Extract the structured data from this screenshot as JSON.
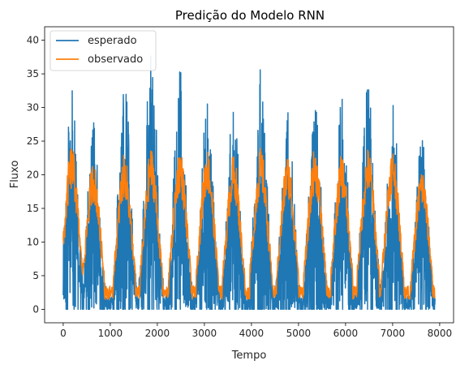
{
  "chart_data": {
    "type": "line",
    "title": "Predição do Modelo RNN",
    "xlabel": "Tempo",
    "ylabel": "Fluxo",
    "xlim": [
      -395,
      8295
    ],
    "ylim": [
      -2,
      42
    ],
    "xticks": [
      0,
      1000,
      2000,
      3000,
      4000,
      5000,
      6000,
      7000,
      8000
    ],
    "yticks": [
      0,
      5,
      10,
      15,
      20,
      25,
      30,
      35,
      40
    ],
    "grid": false,
    "legend_position": "top-left",
    "cycle_peaks_x": [
      180,
      640,
      1300,
      1870,
      2480,
      3060,
      3620,
      4200,
      4770,
      5350,
      5920,
      6480,
      7000,
      7620
    ],
    "series": [
      {
        "name": "esperado",
        "color": "#1f77b4",
        "x_range": [
          0,
          7900
        ],
        "y_min": 0,
        "y_max": 40,
        "cycle_peaks_y": [
          33,
          28,
          35,
          40,
          36,
          31,
          31,
          36,
          31,
          32,
          32,
          34,
          31,
          26
        ]
      },
      {
        "name": "observado",
        "color": "#ff7f0e",
        "x_range": [
          0,
          7900
        ],
        "y_min": 1.5,
        "y_max": 25,
        "cycle_peaks_y": [
          24.5,
          22,
          23,
          24,
          24,
          24,
          23,
          24,
          23,
          24,
          23,
          24,
          24,
          21
        ]
      }
    ]
  }
}
